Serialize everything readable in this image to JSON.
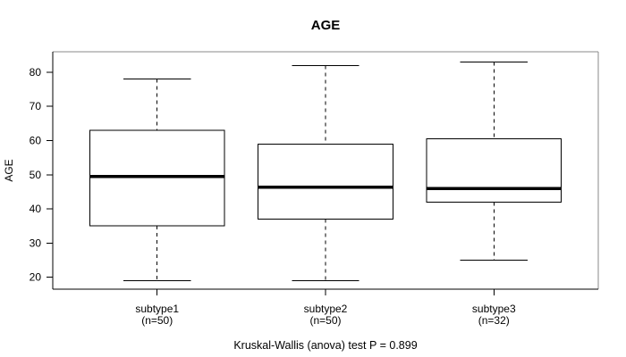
{
  "chart_data": {
    "type": "boxplot",
    "title": "AGE",
    "xlabel": "",
    "ylabel": "AGE",
    "ylim": [
      16.5,
      86
    ],
    "yticks": [
      20,
      30,
      40,
      50,
      60,
      70,
      80
    ],
    "grid": false,
    "legend": "none",
    "categories": [
      "subtype1",
      "subtype2",
      "subtype3"
    ],
    "category_sublabels": [
      "(n=50)",
      "(n=50)",
      "(n=32)"
    ],
    "series": [
      {
        "name": "subtype1",
        "n": 50,
        "whisker_low": 19,
        "q1": 35,
        "median": 49.5,
        "q3": 63,
        "whisker_high": 78,
        "outliers": []
      },
      {
        "name": "subtype2",
        "n": 50,
        "whisker_low": 19,
        "q1": 37,
        "median": 46.3,
        "q3": 59,
        "whisker_high": 82,
        "outliers": []
      },
      {
        "name": "subtype3",
        "n": 32,
        "whisker_low": 25,
        "q1": 42,
        "median": 46,
        "q3": 60.5,
        "whisker_high": 83,
        "outliers": []
      }
    ],
    "caption": "Kruskal-Wallis (anova) test P = 0.899",
    "colors": {
      "line": "#000000",
      "frame": "#898989",
      "box_fill": "#ffffff",
      "background": "#ffffff",
      "text": "#000000"
    }
  }
}
